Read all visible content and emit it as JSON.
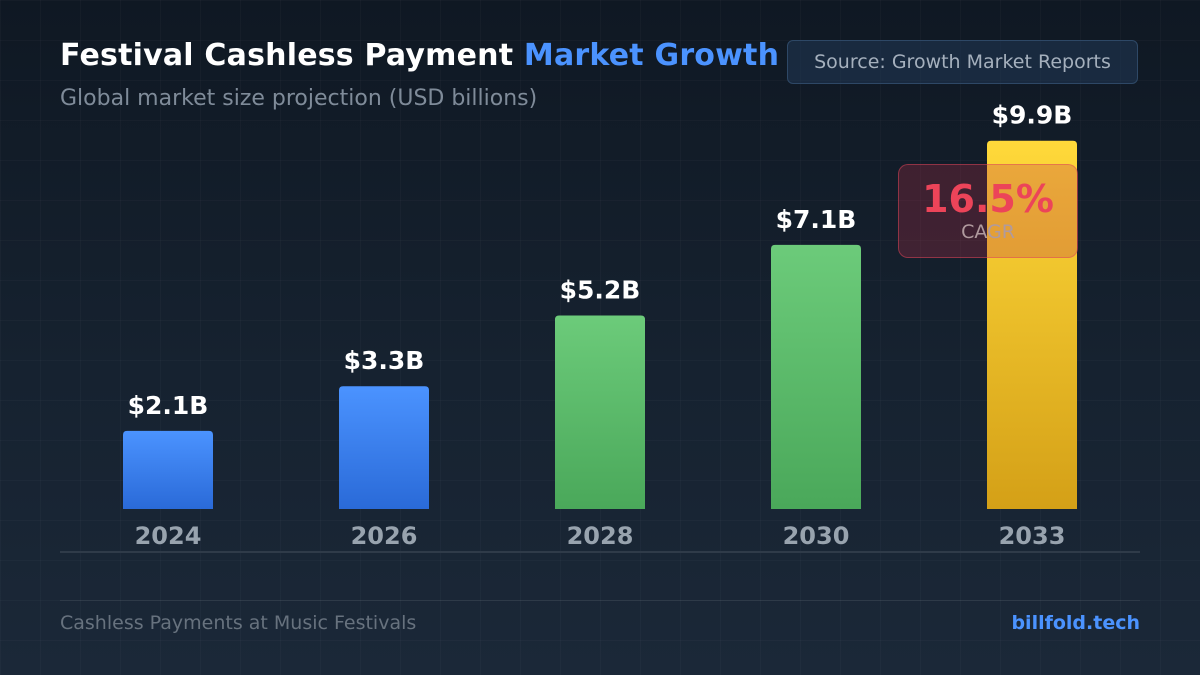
{
  "header": {
    "title_main": "Festival Cashless Payment",
    "title_accent": "Market Growth",
    "subtitle": "Global market size projection (USD billions)",
    "source": "Source: Growth Market Reports"
  },
  "cagr": {
    "value": "16.5%",
    "label": "CAGR"
  },
  "footer": {
    "left": "Cashless Payments at Music Festivals",
    "right": "billfold.tech"
  },
  "colors": {
    "accent": "#4b93ff",
    "blue_top": "#4b93ff",
    "blue_bottom": "#2a6ad8",
    "green_top": "#6ccb7a",
    "green_bottom": "#4aa85a",
    "gold_top": "#ffd93a",
    "gold_bottom": "#d4a017",
    "cagr": "#ec4459"
  },
  "chart_data": {
    "type": "bar",
    "title": "Festival Cashless Payment Market Growth",
    "subtitle": "Global market size projection (USD billions)",
    "categories": [
      "2024",
      "2026",
      "2028",
      "2030",
      "2033"
    ],
    "values": [
      2.1,
      3.3,
      5.2,
      7.1,
      9.9
    ],
    "value_labels": [
      "$2.1B",
      "$3.3B",
      "$5.2B",
      "$7.1B",
      "$9.9B"
    ],
    "bar_colors": [
      "blue",
      "blue",
      "green",
      "green",
      "gold"
    ],
    "unit": "USD billions",
    "ylim": [
      0,
      10
    ],
    "grid": false,
    "legend": "none"
  }
}
